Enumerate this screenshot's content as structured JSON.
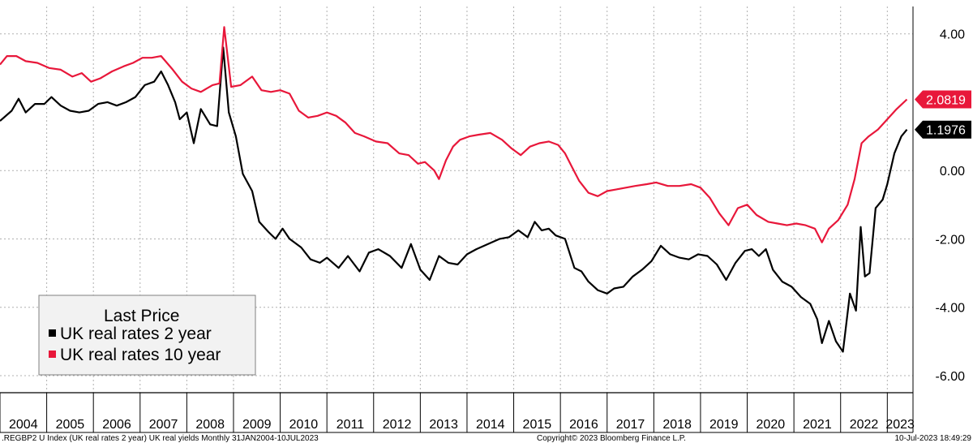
{
  "chart_data": {
    "type": "line",
    "ylim": [
      -6.5,
      4.8
    ],
    "yticks": [
      "4.00",
      "0.00",
      "-2.00",
      "-4.00",
      "-6.00"
    ],
    "ytick_values": [
      4,
      0,
      -2,
      -4,
      -6
    ],
    "xlim": [
      2004.0,
      2023.55
    ],
    "x_tick_labels": [
      "2004",
      "2005",
      "2006",
      "2007",
      "2008",
      "2009",
      "2010",
      "2011",
      "2012",
      "2013",
      "2014",
      "2015",
      "2016",
      "2017",
      "2018",
      "2019",
      "2020",
      "2021",
      "2022",
      "2023"
    ],
    "grid": true,
    "legend": {
      "title": "Last Price",
      "placement": "bottom-left",
      "entries": [
        {
          "label": "UK real rates 2 year",
          "color": "#000000"
        },
        {
          "label": "UK real rates 10 year",
          "color": "#e8173a"
        }
      ]
    },
    "last_values": [
      {
        "label": "1.1976",
        "value": 1.1976,
        "color": "#000000"
      },
      {
        "label": "2.0819",
        "value": 2.0819,
        "color": "#e8173a"
      }
    ],
    "series": [
      {
        "name": "UK real rates 2 year",
        "color": "#000000",
        "points": [
          [
            2004.0,
            1.45
          ],
          [
            2004.25,
            1.75
          ],
          [
            2004.4,
            2.1
          ],
          [
            2004.55,
            1.7
          ],
          [
            2004.75,
            1.95
          ],
          [
            2004.95,
            1.95
          ],
          [
            2005.1,
            2.15
          ],
          [
            2005.3,
            1.9
          ],
          [
            2005.5,
            1.75
          ],
          [
            2005.7,
            1.7
          ],
          [
            2005.9,
            1.75
          ],
          [
            2006.1,
            1.95
          ],
          [
            2006.3,
            2.0
          ],
          [
            2006.5,
            1.9
          ],
          [
            2006.7,
            2.0
          ],
          [
            2006.9,
            2.15
          ],
          [
            2007.1,
            2.5
          ],
          [
            2007.3,
            2.6
          ],
          [
            2007.45,
            2.9
          ],
          [
            2007.6,
            2.5
          ],
          [
            2007.75,
            2.0
          ],
          [
            2007.85,
            1.5
          ],
          [
            2008.0,
            1.7
          ],
          [
            2008.15,
            0.8
          ],
          [
            2008.3,
            1.8
          ],
          [
            2008.5,
            1.35
          ],
          [
            2008.65,
            1.3
          ],
          [
            2008.78,
            3.6
          ],
          [
            2008.9,
            1.7
          ],
          [
            2009.05,
            1.0
          ],
          [
            2009.2,
            -0.1
          ],
          [
            2009.4,
            -0.6
          ],
          [
            2009.55,
            -1.5
          ],
          [
            2009.75,
            -1.8
          ],
          [
            2009.9,
            -2.0
          ],
          [
            2010.05,
            -1.7
          ],
          [
            2010.2,
            -2.0
          ],
          [
            2010.45,
            -2.25
          ],
          [
            2010.65,
            -2.6
          ],
          [
            2010.85,
            -2.7
          ],
          [
            2011.0,
            -2.55
          ],
          [
            2011.25,
            -2.85
          ],
          [
            2011.45,
            -2.5
          ],
          [
            2011.7,
            -2.95
          ],
          [
            2011.9,
            -2.4
          ],
          [
            2012.1,
            -2.3
          ],
          [
            2012.35,
            -2.5
          ],
          [
            2012.6,
            -2.85
          ],
          [
            2012.8,
            -2.15
          ],
          [
            2013.0,
            -2.9
          ],
          [
            2013.2,
            -3.2
          ],
          [
            2013.4,
            -2.5
          ],
          [
            2013.6,
            -2.7
          ],
          [
            2013.8,
            -2.75
          ],
          [
            2014.0,
            -2.45
          ],
          [
            2014.2,
            -2.3
          ],
          [
            2014.45,
            -2.15
          ],
          [
            2014.7,
            -2.0
          ],
          [
            2014.9,
            -1.95
          ],
          [
            2015.1,
            -1.75
          ],
          [
            2015.3,
            -1.95
          ],
          [
            2015.45,
            -1.5
          ],
          [
            2015.6,
            -1.75
          ],
          [
            2015.75,
            -1.7
          ],
          [
            2015.9,
            -1.9
          ],
          [
            2016.1,
            -2.0
          ],
          [
            2016.3,
            -2.85
          ],
          [
            2016.45,
            -2.95
          ],
          [
            2016.6,
            -3.25
          ],
          [
            2016.8,
            -3.5
          ],
          [
            2017.0,
            -3.6
          ],
          [
            2017.15,
            -3.45
          ],
          [
            2017.35,
            -3.4
          ],
          [
            2017.55,
            -3.1
          ],
          [
            2017.75,
            -2.9
          ],
          [
            2017.95,
            -2.65
          ],
          [
            2018.15,
            -2.2
          ],
          [
            2018.35,
            -2.45
          ],
          [
            2018.55,
            -2.55
          ],
          [
            2018.75,
            -2.6
          ],
          [
            2018.95,
            -2.45
          ],
          [
            2019.15,
            -2.5
          ],
          [
            2019.35,
            -2.75
          ],
          [
            2019.55,
            -3.2
          ],
          [
            2019.75,
            -2.7
          ],
          [
            2019.95,
            -2.35
          ],
          [
            2020.1,
            -2.3
          ],
          [
            2020.25,
            -2.5
          ],
          [
            2020.4,
            -2.3
          ],
          [
            2020.55,
            -2.9
          ],
          [
            2020.75,
            -3.25
          ],
          [
            2020.95,
            -3.4
          ],
          [
            2021.15,
            -3.7
          ],
          [
            2021.35,
            -3.9
          ],
          [
            2021.5,
            -4.35
          ],
          [
            2021.6,
            -5.05
          ],
          [
            2021.75,
            -4.4
          ],
          [
            2021.9,
            -5.0
          ],
          [
            2022.05,
            -5.3
          ],
          [
            2022.2,
            -3.6
          ],
          [
            2022.33,
            -4.1
          ],
          [
            2022.43,
            -1.65
          ],
          [
            2022.52,
            -3.1
          ],
          [
            2022.62,
            -3.0
          ],
          [
            2022.75,
            -1.1
          ],
          [
            2022.9,
            -0.85
          ],
          [
            2023.0,
            -0.4
          ],
          [
            2023.15,
            0.5
          ],
          [
            2023.3,
            1.0
          ],
          [
            2023.42,
            1.1976
          ]
        ]
      },
      {
        "name": "UK real rates 10 year",
        "color": "#e8173a",
        "points": [
          [
            2004.0,
            3.1
          ],
          [
            2004.15,
            3.35
          ],
          [
            2004.35,
            3.35
          ],
          [
            2004.55,
            3.2
          ],
          [
            2004.8,
            3.15
          ],
          [
            2005.05,
            3.0
          ],
          [
            2005.3,
            2.95
          ],
          [
            2005.55,
            2.75
          ],
          [
            2005.75,
            2.85
          ],
          [
            2005.95,
            2.6
          ],
          [
            2006.15,
            2.7
          ],
          [
            2006.4,
            2.9
          ],
          [
            2006.65,
            3.05
          ],
          [
            2006.85,
            3.15
          ],
          [
            2007.05,
            3.3
          ],
          [
            2007.25,
            3.3
          ],
          [
            2007.45,
            3.35
          ],
          [
            2007.7,
            2.95
          ],
          [
            2007.9,
            2.6
          ],
          [
            2008.1,
            2.4
          ],
          [
            2008.3,
            2.3
          ],
          [
            2008.55,
            2.5
          ],
          [
            2008.7,
            2.55
          ],
          [
            2008.8,
            4.2
          ],
          [
            2008.95,
            2.45
          ],
          [
            2009.15,
            2.5
          ],
          [
            2009.4,
            2.75
          ],
          [
            2009.6,
            2.35
          ],
          [
            2009.8,
            2.3
          ],
          [
            2010.0,
            2.35
          ],
          [
            2010.2,
            2.25
          ],
          [
            2010.4,
            1.75
          ],
          [
            2010.6,
            1.55
          ],
          [
            2010.8,
            1.6
          ],
          [
            2011.0,
            1.7
          ],
          [
            2011.2,
            1.6
          ],
          [
            2011.4,
            1.4
          ],
          [
            2011.6,
            1.1
          ],
          [
            2011.8,
            1.0
          ],
          [
            2012.05,
            0.85
          ],
          [
            2012.3,
            0.8
          ],
          [
            2012.55,
            0.5
          ],
          [
            2012.75,
            0.45
          ],
          [
            2012.95,
            0.2
          ],
          [
            2013.1,
            0.25
          ],
          [
            2013.3,
            0.0
          ],
          [
            2013.4,
            -0.25
          ],
          [
            2013.55,
            0.3
          ],
          [
            2013.7,
            0.7
          ],
          [
            2013.85,
            0.9
          ],
          [
            2014.05,
            1.0
          ],
          [
            2014.25,
            1.05
          ],
          [
            2014.5,
            1.1
          ],
          [
            2014.75,
            0.9
          ],
          [
            2014.95,
            0.65
          ],
          [
            2015.15,
            0.45
          ],
          [
            2015.35,
            0.7
          ],
          [
            2015.55,
            0.8
          ],
          [
            2015.75,
            0.85
          ],
          [
            2015.95,
            0.75
          ],
          [
            2016.1,
            0.5
          ],
          [
            2016.25,
            0.1
          ],
          [
            2016.4,
            -0.3
          ],
          [
            2016.6,
            -0.65
          ],
          [
            2016.8,
            -0.75
          ],
          [
            2017.0,
            -0.6
          ],
          [
            2017.2,
            -0.55
          ],
          [
            2017.4,
            -0.5
          ],
          [
            2017.6,
            -0.45
          ],
          [
            2017.85,
            -0.4
          ],
          [
            2018.05,
            -0.35
          ],
          [
            2018.3,
            -0.45
          ],
          [
            2018.55,
            -0.45
          ],
          [
            2018.8,
            -0.4
          ],
          [
            2019.0,
            -0.5
          ],
          [
            2019.2,
            -0.8
          ],
          [
            2019.4,
            -1.25
          ],
          [
            2019.6,
            -1.6
          ],
          [
            2019.8,
            -1.1
          ],
          [
            2020.0,
            -1.0
          ],
          [
            2020.2,
            -1.3
          ],
          [
            2020.45,
            -1.5
          ],
          [
            2020.65,
            -1.55
          ],
          [
            2020.85,
            -1.6
          ],
          [
            2021.05,
            -1.55
          ],
          [
            2021.25,
            -1.6
          ],
          [
            2021.45,
            -1.7
          ],
          [
            2021.6,
            -2.1
          ],
          [
            2021.75,
            -1.7
          ],
          [
            2021.95,
            -1.45
          ],
          [
            2022.15,
            -1.0
          ],
          [
            2022.3,
            -0.25
          ],
          [
            2022.45,
            0.8
          ],
          [
            2022.6,
            1.0
          ],
          [
            2022.8,
            1.2
          ],
          [
            2023.0,
            1.5
          ],
          [
            2023.2,
            1.8
          ],
          [
            2023.42,
            2.0819
          ]
        ]
      }
    ]
  },
  "footer": {
    "source": ".REGBP2 U Index (UK real rates 2 year) UK real yields  Monthly 31JAN2004-10JUL2023",
    "copyright": "Copyright© 2023 Bloomberg Finance L.P.",
    "timestamp": "10-Jul-2023 18:49:29"
  }
}
